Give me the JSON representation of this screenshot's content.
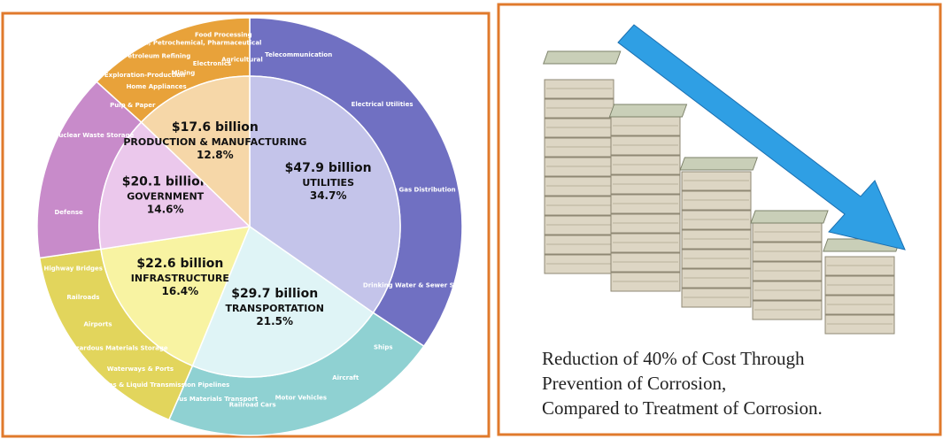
{
  "chart_data": {
    "type": "pie",
    "categories": [
      "UTILITIES",
      "TRANSPORTATION",
      "INFRASTRUCTURE",
      "GOVERNMENT",
      "PRODUCTION & MANUFACTURING"
    ],
    "amount_labels": [
      "$47.9 billion",
      "$29.7 billion",
      "$22.6 billion",
      "$20.1 billion",
      "$17.6 billion"
    ],
    "values": [
      34.7,
      21.5,
      16.4,
      14.6,
      12.8
    ],
    "value_labels": [
      "34.7%",
      "21.5%",
      "16.4%",
      "14.6%",
      "12.8%"
    ],
    "colors": [
      "#c4c4ea",
      "#dff4f6",
      "#f8f3a2",
      "#ebc8ec",
      "#f6d7a8"
    ],
    "ring_colors": [
      "#7070c2",
      "#8fd1d2",
      "#e2d55c",
      "#c88bca",
      "#e8a23a"
    ],
    "subsectors": [
      [
        "Telecommunication",
        "Electrical Utilities",
        "Gas Distribution",
        "Drinking Water & Sewer Systems"
      ],
      [
        "Ships",
        "Aircraft",
        "Motor Vehicles",
        "Railroad Cars",
        "Hazardous Materials Transport"
      ],
      [
        "Gas & Liquid Transmission Pipelines",
        "Waterways & Ports",
        "Hazardous Materials Storage",
        "Airports",
        "Railroads",
        "Highway Bridges"
      ],
      [
        "Defense",
        "Nuclear Waste Storage"
      ],
      [
        "Pulp & Paper",
        "Oil & Gas Exploration-Production",
        "Home Appliances",
        "Petroleum Refining",
        "Mining",
        "Chemical, Petrochemical, Pharmaceutical",
        "Electronics",
        "Food Processing",
        "Agricultural"
      ]
    ]
  },
  "image_caption": [
    "Reduction of 40% of Cost Through",
    "Prevention of Corrosion,",
    "Compared to Treatment of Corrosion."
  ]
}
